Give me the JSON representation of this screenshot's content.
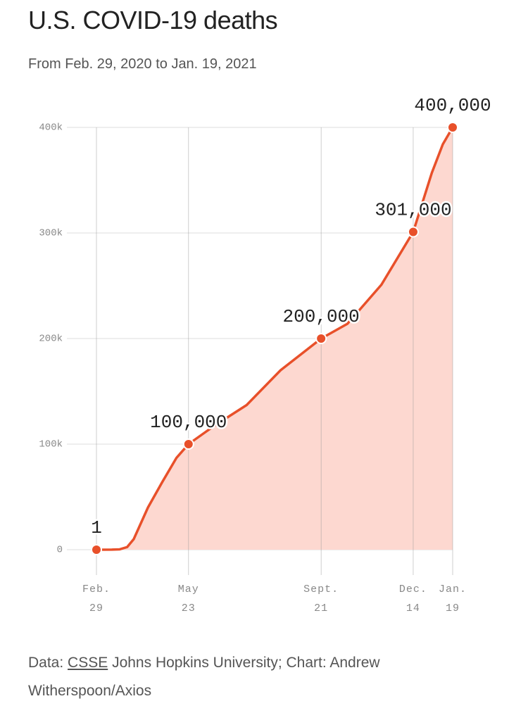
{
  "chart_data": {
    "type": "area",
    "title": "U.S. COVID-19 deaths",
    "subtitle": "From Feb. 29, 2020 to Jan. 19, 2021",
    "x": [
      "2020-02-29",
      "2020-03-14",
      "2020-03-21",
      "2020-03-28",
      "2020-04-03",
      "2020-04-16",
      "2020-04-29",
      "2020-05-12",
      "2020-05-23",
      "2020-06-15",
      "2020-07-15",
      "2020-08-15",
      "2020-09-21",
      "2020-10-15",
      "2020-11-15",
      "2020-12-14",
      "2020-12-31",
      "2021-01-10",
      "2021-01-19"
    ],
    "values": [
      1,
      50,
      300,
      2500,
      10000,
      40000,
      64000,
      87000,
      100000,
      117000,
      137000,
      170000,
      200000,
      214000,
      251000,
      301000,
      357000,
      384000,
      400000
    ],
    "highlights": {
      "x": [
        "2020-02-29",
        "2020-05-23",
        "2020-09-21",
        "2020-12-14",
        "2021-01-19"
      ],
      "values": [
        1,
        100000,
        200000,
        301000,
        400000
      ],
      "value_labels": [
        "1",
        "100,000",
        "200,000",
        "301,000",
        "400,000"
      ]
    },
    "color": "#e8502a",
    "fill": "#fdd8d0",
    "xlim": [
      "2020-02-29",
      "2021-01-19"
    ],
    "xticks": [
      {
        "value": "2020-02-29",
        "label": "Feb. 29"
      },
      {
        "value": "2020-05-23",
        "label": "May 23"
      },
      {
        "value": "2020-09-21",
        "label": "Sept. 21"
      },
      {
        "value": "2020-12-14",
        "label": "Dec. 14"
      },
      {
        "value": "2021-01-19",
        "label": "Jan. 19"
      }
    ],
    "ylim": [
      0,
      400000
    ],
    "yticks": [
      0,
      {
        "value": 100000,
        "label": "100k"
      },
      {
        "value": 200000,
        "label": "200k"
      },
      {
        "value": 300000,
        "label": "300k"
      },
      {
        "value": 400000,
        "label": "400k"
      }
    ],
    "grid": true,
    "source": {
      "label": "Data:",
      "link": "CSSE",
      "text": "Johns Hopkins University; Chart: Andrew Witherspoon/Axios"
    }
  }
}
